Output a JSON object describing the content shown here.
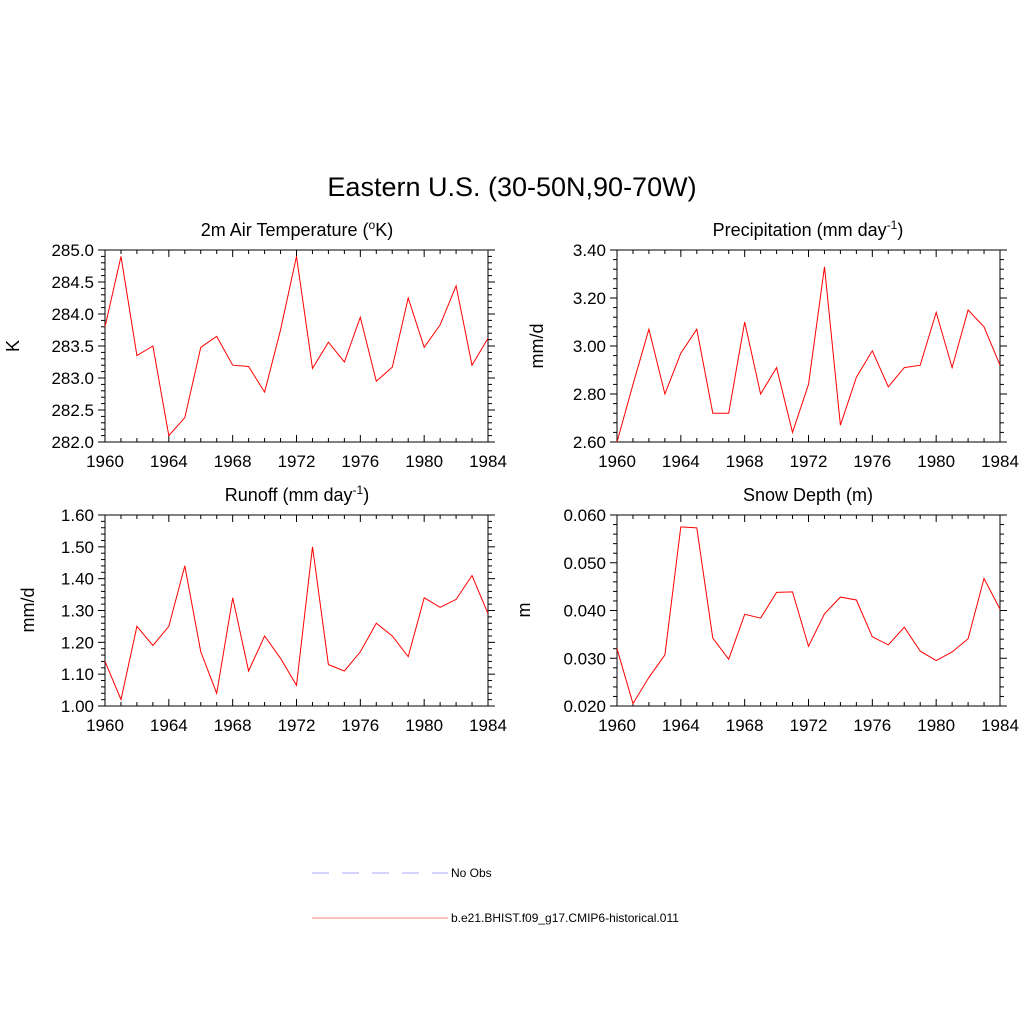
{
  "title": "Eastern U.S. (30-50N,90-70W)",
  "colors": {
    "model": "#ff0000",
    "obs": "#a8a8ff",
    "axis": "#000000"
  },
  "legend": [
    {
      "label": "No Obs",
      "style": "dashed",
      "color": "#a8a8ff"
    },
    {
      "label": "b.e21.BHIST.f09_g17.CMIP6-historical.011",
      "style": "solid",
      "color": "#ff0000"
    }
  ],
  "chart_data": [
    {
      "type": "line",
      "title": "2m Air Temperature (",
      "title_sup": "o",
      "title_tail": "K)",
      "ylabel": "K",
      "xlim": [
        1960,
        1984
      ],
      "ylim": [
        282.0,
        285.0
      ],
      "xticks": [
        "1960",
        "1964",
        "1968",
        "1972",
        "1976",
        "1980",
        "1984"
      ],
      "yticks": [
        "282.0",
        "282.5",
        "283.0",
        "283.5",
        "284.0",
        "284.5",
        "285.0"
      ],
      "x": [
        1960,
        1961,
        1962,
        1963,
        1964,
        1965,
        1966,
        1967,
        1968,
        1969,
        1970,
        1971,
        1972,
        1973,
        1974,
        1975,
        1976,
        1977,
        1978,
        1979,
        1980,
        1981,
        1982,
        1983,
        1984
      ],
      "series": [
        {
          "name": "b.e21.BHIST.f09_g17.CMIP6-historical.011",
          "values": [
            283.8,
            284.9,
            283.35,
            283.5,
            282.1,
            282.38,
            283.48,
            283.65,
            283.2,
            283.18,
            282.78,
            283.75,
            284.9,
            283.15,
            283.56,
            283.25,
            283.95,
            282.95,
            283.17,
            284.25,
            283.48,
            283.83,
            284.44,
            283.2,
            283.62
          ]
        }
      ]
    },
    {
      "type": "line",
      "title": "Precipitation (mm day",
      "title_sup": "-1",
      "title_tail": ")",
      "ylabel": "mm/d",
      "xlim": [
        1960,
        1984
      ],
      "ylim": [
        2.6,
        3.4
      ],
      "xticks": [
        "1960",
        "1964",
        "1968",
        "1972",
        "1976",
        "1980",
        "1984"
      ],
      "yticks": [
        "2.60",
        "2.80",
        "3.00",
        "3.20",
        "3.40"
      ],
      "x": [
        1960,
        1961,
        1962,
        1963,
        1964,
        1965,
        1966,
        1967,
        1968,
        1969,
        1970,
        1971,
        1972,
        1973,
        1974,
        1975,
        1976,
        1977,
        1978,
        1979,
        1980,
        1981,
        1982,
        1983,
        1984
      ],
      "series": [
        {
          "name": "b.e21.BHIST.f09_g17.CMIP6-historical.011",
          "values": [
            2.6,
            2.84,
            3.07,
            2.8,
            2.97,
            3.07,
            2.72,
            2.72,
            3.1,
            2.8,
            2.91,
            2.64,
            2.84,
            3.33,
            2.67,
            2.87,
            2.98,
            2.83,
            2.91,
            2.92,
            3.14,
            2.91,
            3.15,
            3.08,
            2.92
          ]
        }
      ]
    },
    {
      "type": "line",
      "title": "Runoff (mm day",
      "title_sup": "-1",
      "title_tail": ")",
      "ylabel": "mm/d",
      "xlim": [
        1960,
        1984
      ],
      "ylim": [
        1.0,
        1.6
      ],
      "xticks": [
        "1960",
        "1964",
        "1968",
        "1972",
        "1976",
        "1980",
        "1984"
      ],
      "yticks": [
        "1.00",
        "1.10",
        "1.20",
        "1.30",
        "1.40",
        "1.50",
        "1.60"
      ],
      "x": [
        1960,
        1961,
        1962,
        1963,
        1964,
        1965,
        1966,
        1967,
        1968,
        1969,
        1970,
        1971,
        1972,
        1973,
        1974,
        1975,
        1976,
        1977,
        1978,
        1979,
        1980,
        1981,
        1982,
        1983,
        1984
      ],
      "series": [
        {
          "name": "b.e21.BHIST.f09_g17.CMIP6-historical.011",
          "values": [
            1.14,
            1.02,
            1.25,
            1.19,
            1.25,
            1.44,
            1.17,
            1.04,
            1.34,
            1.11,
            1.22,
            1.15,
            1.065,
            1.5,
            1.13,
            1.11,
            1.17,
            1.26,
            1.22,
            1.155,
            1.34,
            1.31,
            1.335,
            1.41,
            1.29
          ]
        }
      ]
    },
    {
      "type": "line",
      "title": "Snow Depth (m)",
      "title_sup": "",
      "title_tail": "",
      "ylabel": "m",
      "xlim": [
        1960,
        1984
      ],
      "ylim": [
        0.02,
        0.06
      ],
      "xticks": [
        "1960",
        "1964",
        "1968",
        "1972",
        "1976",
        "1980",
        "1984"
      ],
      "yticks": [
        "0.020",
        "0.030",
        "0.040",
        "0.050",
        "0.060"
      ],
      "x": [
        1960,
        1961,
        1962,
        1963,
        1964,
        1965,
        1966,
        1967,
        1968,
        1969,
        1970,
        1971,
        1972,
        1973,
        1974,
        1975,
        1976,
        1977,
        1978,
        1979,
        1980,
        1981,
        1982,
        1983,
        1984
      ],
      "series": [
        {
          "name": "b.e21.BHIST.f09_g17.CMIP6-historical.011",
          "values": [
            0.032,
            0.0205,
            0.026,
            0.0307,
            0.0575,
            0.0573,
            0.0342,
            0.0298,
            0.0392,
            0.0384,
            0.0438,
            0.0439,
            0.0325,
            0.0393,
            0.0428,
            0.0422,
            0.0345,
            0.0328,
            0.0365,
            0.0315,
            0.0295,
            0.0313,
            0.0341,
            0.0467,
            0.0403
          ]
        }
      ]
    }
  ]
}
